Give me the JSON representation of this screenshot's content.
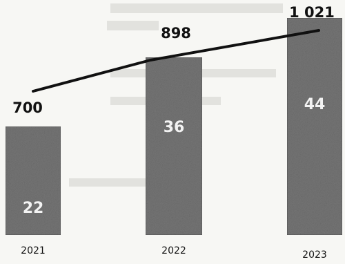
{
  "chart_data": {
    "type": "bar",
    "categories": [
      "2021",
      "2022",
      "2023"
    ],
    "series": [
      {
        "type": "bar",
        "values": [
          22,
          36,
          44
        ],
        "labels": [
          "22",
          "36",
          "44"
        ]
      },
      {
        "type": "line",
        "values": [
          700,
          898,
          1021
        ],
        "labels": [
          "700",
          "898",
          "1 021"
        ]
      }
    ],
    "title": "",
    "xlabel": "",
    "ylabel": "",
    "ylim": [
      0,
      50
    ],
    "y2lim": [
      0,
      1100
    ],
    "grid": false,
    "legend": "none",
    "colors": {
      "bar": "#7e7e7e",
      "bar_dark": "#5c5c5c",
      "bar_light": "#a9a9a9",
      "line": "#111111",
      "text": "#111111",
      "bar_text": "#f3f3f3"
    }
  }
}
